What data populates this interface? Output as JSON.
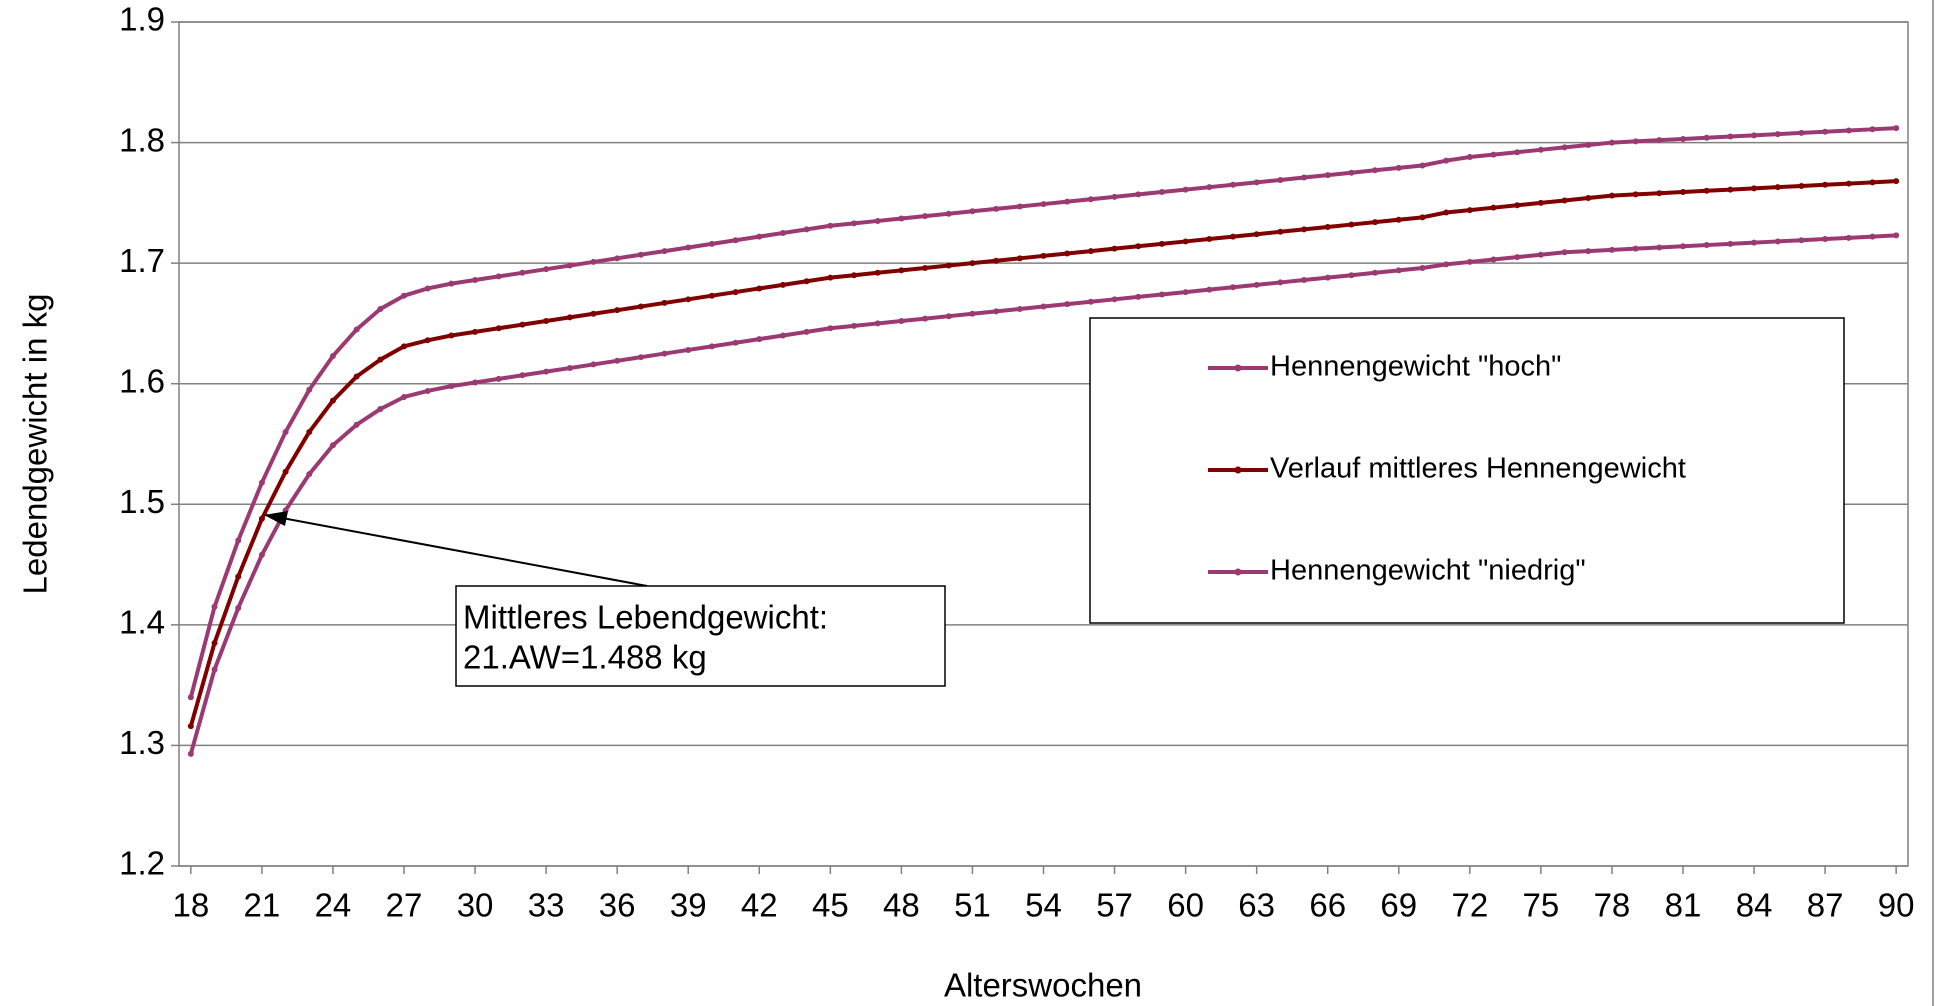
{
  "chart_data": {
    "type": "line",
    "xlabel": "Alterswochen",
    "ylabel": "Ledendgewicht in kg",
    "x": [
      18,
      19,
      20,
      21,
      22,
      23,
      24,
      25,
      26,
      27,
      28,
      29,
      30,
      31,
      32,
      33,
      34,
      35,
      36,
      37,
      38,
      39,
      40,
      41,
      42,
      43,
      44,
      45,
      46,
      47,
      48,
      49,
      50,
      51,
      52,
      53,
      54,
      55,
      56,
      57,
      58,
      59,
      60,
      61,
      62,
      63,
      64,
      65,
      66,
      67,
      68,
      69,
      70,
      71,
      72,
      73,
      74,
      75,
      76,
      77,
      78,
      79,
      80,
      81,
      82,
      83,
      84,
      85,
      86,
      87,
      88,
      89,
      90
    ],
    "xlim": [
      17.5,
      90.5
    ],
    "xticks": [
      18,
      21,
      24,
      27,
      30,
      33,
      36,
      39,
      42,
      45,
      48,
      51,
      54,
      57,
      60,
      63,
      66,
      69,
      72,
      75,
      78,
      81,
      84,
      87,
      90
    ],
    "ylim": [
      1.2,
      1.9
    ],
    "yticks": [
      1.2,
      1.3,
      1.4,
      1.5,
      1.6,
      1.7,
      1.8,
      1.9
    ],
    "grid": true,
    "legend": "right",
    "series": [
      {
        "name": "Hennengewicht \"hoch\"",
        "color": "#9b3a72",
        "values": [
          1.34,
          1.415,
          1.47,
          1.518,
          1.56,
          1.595,
          1.623,
          1.645,
          1.662,
          1.673,
          1.679,
          1.683,
          1.686,
          1.689,
          1.692,
          1.695,
          1.698,
          1.701,
          1.704,
          1.707,
          1.71,
          1.713,
          1.716,
          1.719,
          1.722,
          1.725,
          1.728,
          1.731,
          1.733,
          1.735,
          1.737,
          1.739,
          1.741,
          1.743,
          1.745,
          1.747,
          1.749,
          1.751,
          1.753,
          1.755,
          1.757,
          1.759,
          1.761,
          1.763,
          1.765,
          1.767,
          1.769,
          1.771,
          1.773,
          1.775,
          1.777,
          1.779,
          1.781,
          1.785,
          1.788,
          1.79,
          1.792,
          1.794,
          1.796,
          1.798,
          1.8,
          1.801,
          1.802,
          1.803,
          1.804,
          1.805,
          1.806,
          1.807,
          1.808,
          1.809,
          1.81,
          1.811,
          1.812
        ]
      },
      {
        "name": "Verlauf mittleres Hennengewicht",
        "color": "#800000",
        "values": [
          1.316,
          1.385,
          1.44,
          1.488,
          1.527,
          1.56,
          1.586,
          1.606,
          1.62,
          1.631,
          1.636,
          1.64,
          1.643,
          1.646,
          1.649,
          1.652,
          1.655,
          1.658,
          1.661,
          1.664,
          1.667,
          1.67,
          1.673,
          1.676,
          1.679,
          1.682,
          1.685,
          1.688,
          1.69,
          1.692,
          1.694,
          1.696,
          1.698,
          1.7,
          1.702,
          1.704,
          1.706,
          1.708,
          1.71,
          1.712,
          1.714,
          1.716,
          1.718,
          1.72,
          1.722,
          1.724,
          1.726,
          1.728,
          1.73,
          1.732,
          1.734,
          1.736,
          1.738,
          1.742,
          1.744,
          1.746,
          1.748,
          1.75,
          1.752,
          1.754,
          1.756,
          1.757,
          1.758,
          1.759,
          1.76,
          1.761,
          1.762,
          1.763,
          1.764,
          1.765,
          1.766,
          1.767,
          1.768
        ]
      },
      {
        "name": "Hennengewicht \"niedrig\"",
        "color": "#9b3a72",
        "values": [
          1.293,
          1.363,
          1.414,
          1.458,
          1.495,
          1.525,
          1.549,
          1.566,
          1.579,
          1.589,
          1.594,
          1.598,
          1.601,
          1.604,
          1.607,
          1.61,
          1.613,
          1.616,
          1.619,
          1.622,
          1.625,
          1.628,
          1.631,
          1.634,
          1.637,
          1.64,
          1.643,
          1.646,
          1.648,
          1.65,
          1.652,
          1.654,
          1.656,
          1.658,
          1.66,
          1.662,
          1.664,
          1.666,
          1.668,
          1.67,
          1.672,
          1.674,
          1.676,
          1.678,
          1.68,
          1.682,
          1.684,
          1.686,
          1.688,
          1.69,
          1.692,
          1.694,
          1.696,
          1.699,
          1.701,
          1.703,
          1.705,
          1.707,
          1.709,
          1.71,
          1.711,
          1.712,
          1.713,
          1.714,
          1.715,
          1.716,
          1.717,
          1.718,
          1.719,
          1.72,
          1.721,
          1.722,
          1.723
        ]
      }
    ],
    "annotation": [
      "Mittleres Lebendgewicht:",
      "21.AW=1.488 kg"
    ]
  }
}
